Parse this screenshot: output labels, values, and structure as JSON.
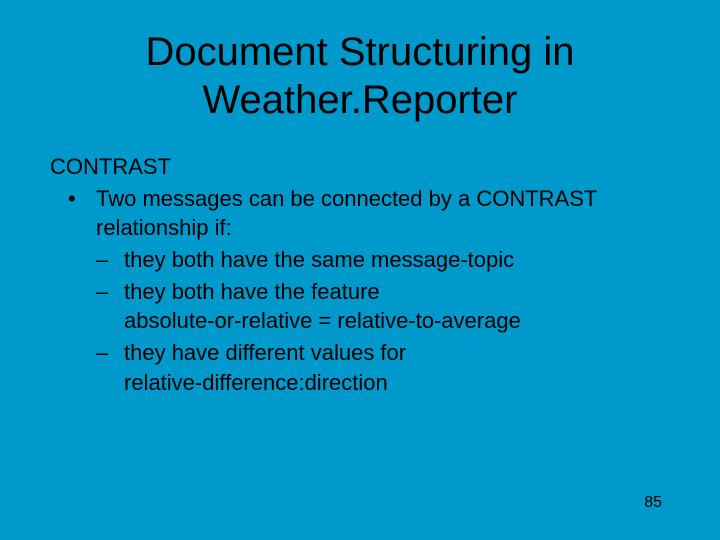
{
  "background_color": "#0099cc",
  "text_color": "#000000",
  "title_fontsize": 40,
  "body_fontsize": 22,
  "pagenum_fontsize": 16,
  "title_line1": "Document Structuring in",
  "title_line2": "Weather.Reporter",
  "subheading": "CONTRAST",
  "main_bullet_marker": "•",
  "main_bullet_line1": "Two messages can be connected by a CONTRAST",
  "main_bullet_line2": "relationship if:",
  "sub_bullet_marker": "–",
  "sub1": "they both have the same message-topic",
  "sub2_line1": "they both have the feature",
  "sub2_line2": "absolute-or-relative = relative-to-average",
  "sub3_line1": "they have different values for",
  "sub3_line2": "relative-difference:direction",
  "page_number": "85"
}
